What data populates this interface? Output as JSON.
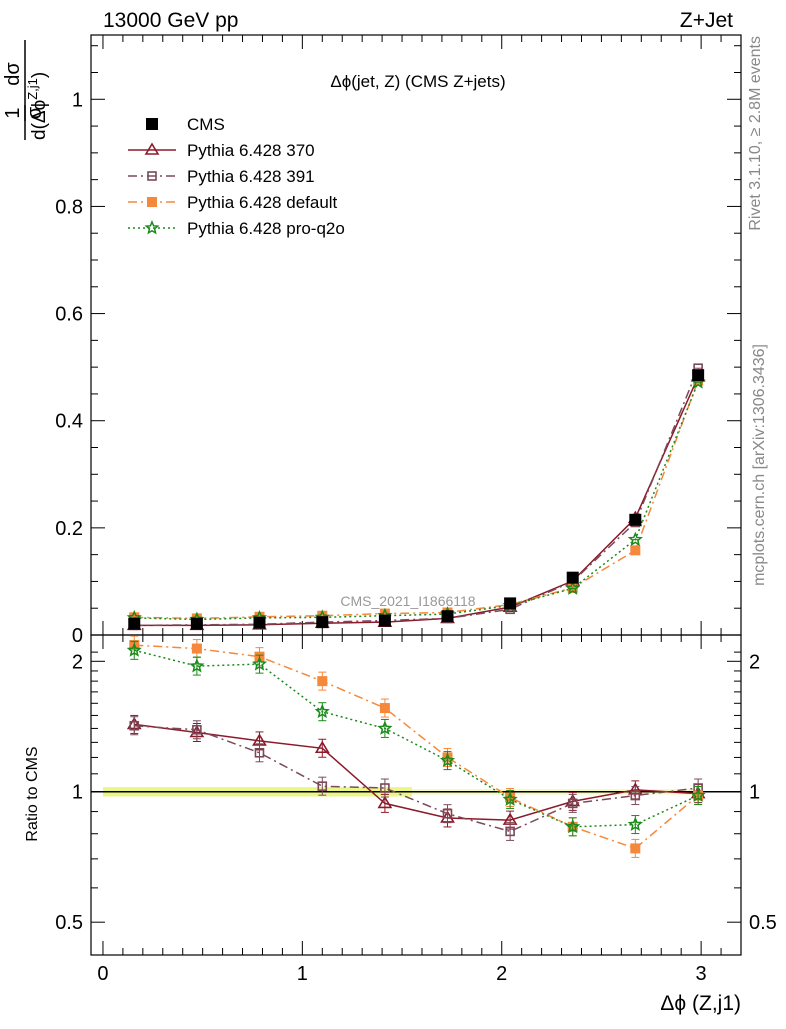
{
  "header": {
    "left": "13000 GeV pp",
    "right": "Z+Jet"
  },
  "side_labels": {
    "rivet": "Rivet 3.1.10, ≥ 2.8M events",
    "mcplots": "mcplots.cern.ch [arXiv:1306.3436]"
  },
  "colors": {
    "cms": "#000000",
    "p370": "#8b1a2a",
    "p391": "#7a4a5a",
    "pdefault": "#f5883a",
    "pq2o": "#1a8a1a",
    "band": "#e8f57a"
  },
  "chart_data": [
    {
      "type": "line",
      "panel": "main",
      "title": "Δϕ(jet, Z) (CMS Z+jets)",
      "analysis_label": "CMS_2021_I1866118",
      "ylabel": "1/σ dσ/d(Δϕ^{Z,j1})",
      "ylabel_parts": {
        "one": "1",
        "sigma": "σ",
        "dsigma": "dσ",
        "d": "d(Δϕ",
        "sup": "Z,j1",
        "close": ")"
      },
      "xlabel": "",
      "xlim": [
        -0.06,
        3.2
      ],
      "ylim": [
        0,
        1.12
      ],
      "yticks": [
        0,
        0.2,
        0.4,
        0.6,
        0.8,
        1
      ],
      "ytick_labels": [
        "0",
        "0.2",
        "0.4",
        "0.6",
        "0.8",
        "1"
      ],
      "legend_placement": "top-left",
      "x": [
        0.157,
        0.471,
        0.785,
        1.1,
        1.414,
        1.728,
        2.042,
        2.356,
        2.67,
        2.985
      ],
      "series": [
        {
          "name": "CMS",
          "key": "cms",
          "marker": "square-filled",
          "dash": "none",
          "values": [
            0.021,
            0.021,
            0.023,
            0.024,
            0.027,
            0.035,
            0.059,
            0.107,
            0.215,
            0.485
          ]
        },
        {
          "name": "Pythia 6.428 370",
          "key": "p370",
          "marker": "triangle-open",
          "dash": "solid",
          "values": [
            0.018,
            0.018,
            0.019,
            0.022,
            0.024,
            0.031,
            0.052,
            0.101,
            0.218,
            0.482
          ]
        },
        {
          "name": "Pythia 6.428 391",
          "key": "p391",
          "marker": "square-open",
          "dash": "dashdot",
          "values": [
            0.018,
            0.019,
            0.02,
            0.024,
            0.027,
            0.031,
            0.048,
            0.1,
            0.21,
            0.498
          ]
        },
        {
          "name": "Pythia 6.428 default",
          "key": "pdefault",
          "marker": "square-filled",
          "dash": "dashdot",
          "values": [
            0.033,
            0.031,
            0.034,
            0.036,
            0.04,
            0.042,
            0.057,
            0.088,
            0.158,
            0.475
          ]
        },
        {
          "name": "Pythia 6.428 pro-q2o",
          "key": "pq2o",
          "marker": "star",
          "dash": "dotted",
          "values": [
            0.032,
            0.029,
            0.032,
            0.033,
            0.036,
            0.039,
            0.055,
            0.087,
            0.178,
            0.472
          ]
        }
      ]
    },
    {
      "type": "line",
      "panel": "ratio",
      "ylabel": "Ratio to CMS",
      "xlabel": "Δϕ (Z,j1)",
      "xlim": [
        -0.06,
        3.2
      ],
      "ylim": [
        0.42,
        2.3
      ],
      "log_y": true,
      "yticks": [
        0.5,
        1,
        2
      ],
      "ytick_labels": [
        "0.5",
        "1",
        "2"
      ],
      "xticks": [
        0,
        1,
        2,
        3
      ],
      "xtick_labels": [
        "0",
        "1",
        "2",
        "3"
      ],
      "band_range": [
        0.975,
        1.025
      ],
      "x": [
        0.157,
        0.471,
        0.785,
        1.1,
        1.414,
        1.728,
        2.042,
        2.356,
        2.67,
        2.985
      ],
      "series": [
        {
          "name": "Pythia 6.428 370",
          "key": "p370",
          "marker": "triangle-open",
          "dash": "solid",
          "values": [
            1.43,
            1.37,
            1.31,
            1.26,
            0.94,
            0.87,
            0.86,
            0.95,
            1.01,
            0.99
          ]
        },
        {
          "name": "Pythia 6.428 391",
          "key": "p391",
          "marker": "square-open",
          "dash": "dashdot",
          "values": [
            1.42,
            1.39,
            1.23,
            1.03,
            1.02,
            0.89,
            0.81,
            0.94,
            0.98,
            1.02
          ]
        },
        {
          "name": "Pythia 6.428 default",
          "key": "pdefault",
          "marker": "square-filled",
          "dash": "dashdot",
          "values": [
            2.18,
            2.14,
            2.05,
            1.8,
            1.56,
            1.2,
            0.97,
            0.83,
            0.74,
            0.98
          ]
        },
        {
          "name": "Pythia 6.428 pro-q2o",
          "key": "pq2o",
          "marker": "star",
          "dash": "dotted",
          "values": [
            2.12,
            1.95,
            1.97,
            1.53,
            1.4,
            1.18,
            0.96,
            0.83,
            0.84,
            0.98
          ]
        }
      ]
    }
  ]
}
